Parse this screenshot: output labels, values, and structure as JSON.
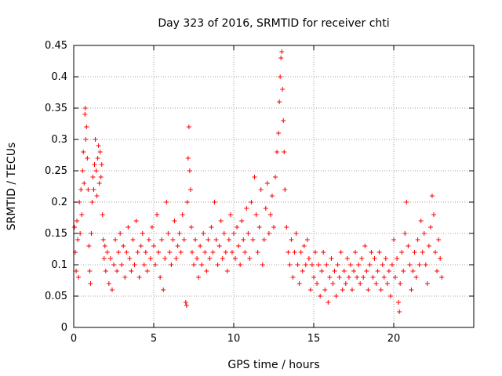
{
  "chart_data": {
    "type": "scatter",
    "title": "Day 323 of 2016, SRMTID for receiver chti",
    "xlabel": "GPS time / hours",
    "ylabel": "SRMTID / TECUs",
    "xlim": [
      0,
      25
    ],
    "ylim": [
      0,
      0.45
    ],
    "xticks": [
      0,
      5,
      10,
      15,
      20
    ],
    "xtick_labels": [
      "0",
      "5",
      "10",
      "15",
      "20"
    ],
    "yticks": [
      0,
      0.05,
      0.1,
      0.15,
      0.2,
      0.25,
      0.3,
      0.35,
      0.4,
      0.45
    ],
    "ytick_labels": [
      "0",
      "0.05",
      "0.1",
      "0.15",
      "0.2",
      "0.25",
      "0.3",
      "0.35",
      "0.4",
      "0.45"
    ],
    "grid": true,
    "marker": "+",
    "color": "#ff0000",
    "series": [
      {
        "name": "SRMTID",
        "points": [
          [
            0.05,
            0.16
          ],
          [
            0.1,
            0.12
          ],
          [
            0.15,
            0.09
          ],
          [
            0.2,
            0.17
          ],
          [
            0.25,
            0.14
          ],
          [
            0.3,
            0.08
          ],
          [
            0.35,
            0.2
          ],
          [
            0.4,
            0.15
          ],
          [
            0.45,
            0.22
          ],
          [
            0.5,
            0.18
          ],
          [
            0.55,
            0.25
          ],
          [
            0.6,
            0.28
          ],
          [
            0.65,
            0.23
          ],
          [
            0.7,
            0.34
          ],
          [
            0.72,
            0.35
          ],
          [
            0.75,
            0.3
          ],
          [
            0.8,
            0.32
          ],
          [
            0.85,
            0.27
          ],
          [
            0.9,
            0.22
          ],
          [
            0.95,
            0.13
          ],
          [
            1.0,
            0.09
          ],
          [
            1.05,
            0.07
          ],
          [
            1.1,
            0.15
          ],
          [
            1.15,
            0.2
          ],
          [
            1.2,
            0.24
          ],
          [
            1.25,
            0.22
          ],
          [
            1.3,
            0.26
          ],
          [
            1.35,
            0.3
          ],
          [
            1.4,
            0.25
          ],
          [
            1.45,
            0.21
          ],
          [
            1.5,
            0.27
          ],
          [
            1.55,
            0.29
          ],
          [
            1.6,
            0.23
          ],
          [
            1.65,
            0.28
          ],
          [
            1.7,
            0.24
          ],
          [
            1.75,
            0.26
          ],
          [
            1.8,
            0.18
          ],
          [
            1.85,
            0.14
          ],
          [
            1.9,
            0.11
          ],
          [
            1.95,
            0.13
          ],
          [
            2.0,
            0.09
          ],
          [
            2.1,
            0.12
          ],
          [
            2.2,
            0.07
          ],
          [
            2.3,
            0.11
          ],
          [
            2.4,
            0.06
          ],
          [
            2.5,
            0.1
          ],
          [
            2.6,
            0.14
          ],
          [
            2.7,
            0.09
          ],
          [
            2.8,
            0.12
          ],
          [
            2.9,
            0.15
          ],
          [
            3.0,
            0.1
          ],
          [
            3.1,
            0.13
          ],
          [
            3.2,
            0.08
          ],
          [
            3.3,
            0.12
          ],
          [
            3.4,
            0.16
          ],
          [
            3.5,
            0.11
          ],
          [
            3.6,
            0.09
          ],
          [
            3.7,
            0.14
          ],
          [
            3.8,
            0.1
          ],
          [
            3.9,
            0.17
          ],
          [
            4.0,
            0.12
          ],
          [
            4.1,
            0.08
          ],
          [
            4.2,
            0.13
          ],
          [
            4.3,
            0.15
          ],
          [
            4.4,
            0.1
          ],
          [
            4.5,
            0.12
          ],
          [
            4.6,
            0.09
          ],
          [
            4.7,
            0.14
          ],
          [
            4.8,
            0.11
          ],
          [
            4.9,
            0.16
          ],
          [
            5.0,
            0.13
          ],
          [
            5.1,
            0.1
          ],
          [
            5.2,
            0.18
          ],
          [
            5.3,
            0.12
          ],
          [
            5.4,
            0.08
          ],
          [
            5.5,
            0.14
          ],
          [
            5.6,
            0.06
          ],
          [
            5.7,
            0.11
          ],
          [
            5.8,
            0.2
          ],
          [
            5.9,
            0.15
          ],
          [
            6.0,
            0.12
          ],
          [
            6.1,
            0.1
          ],
          [
            6.2,
            0.14
          ],
          [
            6.3,
            0.17
          ],
          [
            6.4,
            0.11
          ],
          [
            6.5,
            0.13
          ],
          [
            6.6,
            0.15
          ],
          [
            6.7,
            0.12
          ],
          [
            6.8,
            0.18
          ],
          [
            6.9,
            0.14
          ],
          [
            7.0,
            0.04
          ],
          [
            7.05,
            0.035
          ],
          [
            7.1,
            0.2
          ],
          [
            7.15,
            0.27
          ],
          [
            7.2,
            0.32
          ],
          [
            7.25,
            0.25
          ],
          [
            7.3,
            0.22
          ],
          [
            7.35,
            0.16
          ],
          [
            7.4,
            0.12
          ],
          [
            7.5,
            0.1
          ],
          [
            7.6,
            0.14
          ],
          [
            7.7,
            0.11
          ],
          [
            7.8,
            0.08
          ],
          [
            7.9,
            0.13
          ],
          [
            8.0,
            0.1
          ],
          [
            8.1,
            0.15
          ],
          [
            8.2,
            0.12
          ],
          [
            8.3,
            0.09
          ],
          [
            8.4,
            0.14
          ],
          [
            8.5,
            0.11
          ],
          [
            8.6,
            0.16
          ],
          [
            8.7,
            0.12
          ],
          [
            8.8,
            0.2
          ],
          [
            8.9,
            0.14
          ],
          [
            9.0,
            0.1
          ],
          [
            9.1,
            0.13
          ],
          [
            9.2,
            0.17
          ],
          [
            9.3,
            0.11
          ],
          [
            9.4,
            0.15
          ],
          [
            9.5,
            0.12
          ],
          [
            9.6,
            0.09
          ],
          [
            9.7,
            0.14
          ],
          [
            9.8,
            0.18
          ],
          [
            9.9,
            0.12
          ],
          [
            10.0,
            0.15
          ],
          [
            10.1,
            0.11
          ],
          [
            10.2,
            0.16
          ],
          [
            10.3,
            0.13
          ],
          [
            10.4,
            0.1
          ],
          [
            10.5,
            0.17
          ],
          [
            10.6,
            0.14
          ],
          [
            10.7,
            0.12
          ],
          [
            10.8,
            0.19
          ],
          [
            10.9,
            0.15
          ],
          [
            11.0,
            0.11
          ],
          [
            11.1,
            0.2
          ],
          [
            11.2,
            0.14
          ],
          [
            11.3,
            0.24
          ],
          [
            11.4,
            0.18
          ],
          [
            11.5,
            0.12
          ],
          [
            11.6,
            0.16
          ],
          [
            11.7,
            0.22
          ],
          [
            11.8,
            0.1
          ],
          [
            11.9,
            0.14
          ],
          [
            12.0,
            0.19
          ],
          [
            12.1,
            0.23
          ],
          [
            12.2,
            0.15
          ],
          [
            12.3,
            0.18
          ],
          [
            12.4,
            0.21
          ],
          [
            12.5,
            0.16
          ],
          [
            12.6,
            0.24
          ],
          [
            12.7,
            0.28
          ],
          [
            12.8,
            0.31
          ],
          [
            12.85,
            0.36
          ],
          [
            12.9,
            0.4
          ],
          [
            12.95,
            0.43
          ],
          [
            13.0,
            0.44
          ],
          [
            13.05,
            0.38
          ],
          [
            13.1,
            0.33
          ],
          [
            13.15,
            0.28
          ],
          [
            13.2,
            0.22
          ],
          [
            13.3,
            0.16
          ],
          [
            13.4,
            0.12
          ],
          [
            13.5,
            0.1
          ],
          [
            13.6,
            0.14
          ],
          [
            13.7,
            0.08
          ],
          [
            13.8,
            0.12
          ],
          [
            13.9,
            0.15
          ],
          [
            14.0,
            0.1
          ],
          [
            14.1,
            0.07
          ],
          [
            14.2,
            0.12
          ],
          [
            14.3,
            0.09
          ],
          [
            14.4,
            0.13
          ],
          [
            14.5,
            0.1
          ],
          [
            14.6,
            0.14
          ],
          [
            14.7,
            0.11
          ],
          [
            14.8,
            0.06
          ],
          [
            14.9,
            0.1
          ],
          [
            15.0,
            0.08
          ],
          [
            15.1,
            0.12
          ],
          [
            15.2,
            0.07
          ],
          [
            15.3,
            0.1
          ],
          [
            15.4,
            0.05
          ],
          [
            15.5,
            0.09
          ],
          [
            15.6,
            0.12
          ],
          [
            15.7,
            0.06
          ],
          [
            15.8,
            0.1
          ],
          [
            15.9,
            0.04
          ],
          [
            16.0,
            0.08
          ],
          [
            16.1,
            0.11
          ],
          [
            16.2,
            0.07
          ],
          [
            16.3,
            0.09
          ],
          [
            16.4,
            0.05
          ],
          [
            16.5,
            0.1
          ],
          [
            16.6,
            0.08
          ],
          [
            16.7,
            0.12
          ],
          [
            16.8,
            0.06
          ],
          [
            16.9,
            0.09
          ],
          [
            17.0,
            0.07
          ],
          [
            17.1,
            0.11
          ],
          [
            17.2,
            0.08
          ],
          [
            17.3,
            0.1
          ],
          [
            17.4,
            0.06
          ],
          [
            17.5,
            0.09
          ],
          [
            17.6,
            0.12
          ],
          [
            17.7,
            0.08
          ],
          [
            17.8,
            0.1
          ],
          [
            17.9,
            0.07
          ],
          [
            18.0,
            0.11
          ],
          [
            18.1,
            0.08
          ],
          [
            18.2,
            0.13
          ],
          [
            18.3,
            0.09
          ],
          [
            18.4,
            0.06
          ],
          [
            18.5,
            0.1
          ],
          [
            18.6,
            0.12
          ],
          [
            18.7,
            0.08
          ],
          [
            18.8,
            0.11
          ],
          [
            18.9,
            0.07
          ],
          [
            19.0,
            0.09
          ],
          [
            19.1,
            0.12
          ],
          [
            19.2,
            0.06
          ],
          [
            19.3,
            0.1
          ],
          [
            19.4,
            0.08
          ],
          [
            19.5,
            0.11
          ],
          [
            19.6,
            0.07
          ],
          [
            19.7,
            0.09
          ],
          [
            19.8,
            0.05
          ],
          [
            19.9,
            0.1
          ],
          [
            20.0,
            0.14
          ],
          [
            20.1,
            0.08
          ],
          [
            20.2,
            0.11
          ],
          [
            20.3,
            0.04
          ],
          [
            20.35,
            0.025
          ],
          [
            20.4,
            0.07
          ],
          [
            20.5,
            0.12
          ],
          [
            20.6,
            0.09
          ],
          [
            20.7,
            0.15
          ],
          [
            20.8,
            0.2
          ],
          [
            20.9,
            0.13
          ],
          [
            21.0,
            0.1
          ],
          [
            21.1,
            0.06
          ],
          [
            21.2,
            0.09
          ],
          [
            21.3,
            0.12
          ],
          [
            21.4,
            0.08
          ],
          [
            21.5,
            0.14
          ],
          [
            21.6,
            0.1
          ],
          [
            21.7,
            0.17
          ],
          [
            21.8,
            0.12
          ],
          [
            21.9,
            0.15
          ],
          [
            22.0,
            0.1
          ],
          [
            22.1,
            0.07
          ],
          [
            22.2,
            0.13
          ],
          [
            22.3,
            0.16
          ],
          [
            22.4,
            0.21
          ],
          [
            22.5,
            0.18
          ],
          [
            22.6,
            0.12
          ],
          [
            22.7,
            0.09
          ],
          [
            22.8,
            0.14
          ],
          [
            22.9,
            0.11
          ],
          [
            23.0,
            0.08
          ]
        ]
      }
    ]
  }
}
